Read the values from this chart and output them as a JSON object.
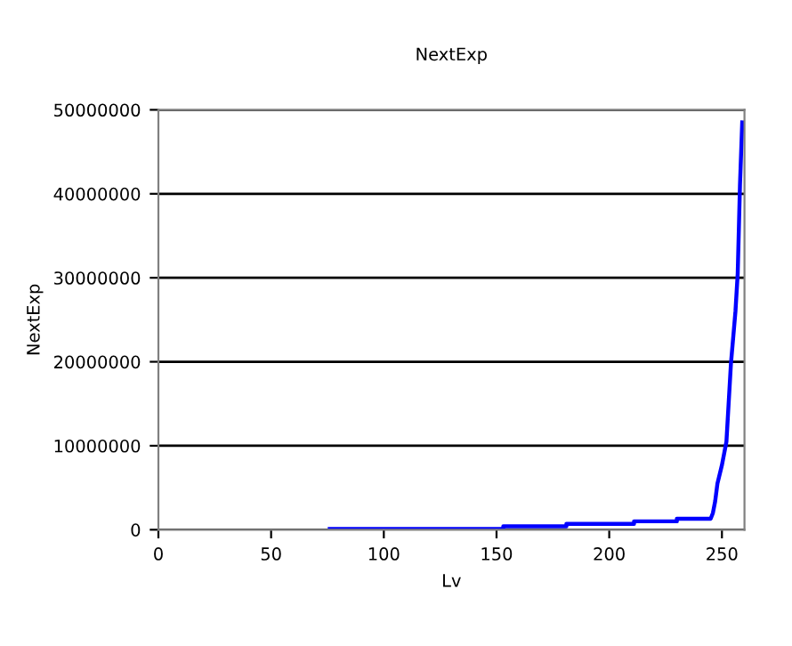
{
  "chart_data": {
    "type": "line",
    "title": "NextExp",
    "xlabel": "Lv",
    "ylabel": "NextExp",
    "series": [
      {
        "color": "#0000ff",
        "x": [
          76,
          153,
          153,
          181,
          181,
          211,
          211,
          230,
          230,
          245,
          246,
          247,
          248,
          250,
          252,
          254,
          256,
          257,
          258,
          259
        ],
        "values": [
          100000,
          100000,
          400000,
          400000,
          700000,
          700000,
          1000000,
          1000000,
          1300000,
          1300000,
          2000000,
          3400000,
          5500000,
          7700000,
          10500000,
          19800000,
          26000000,
          30500000,
          41000000,
          48500000
        ]
      }
    ],
    "xlim": [
      0,
      260
    ],
    "xticks": [
      0,
      50,
      100,
      150,
      200,
      250
    ],
    "ylim": [
      0,
      50000000
    ],
    "yticks": [
      0,
      10000000,
      20000000,
      30000000,
      40000000,
      50000000
    ],
    "grid": "y",
    "marker": "none",
    "line_style": "solid"
  }
}
